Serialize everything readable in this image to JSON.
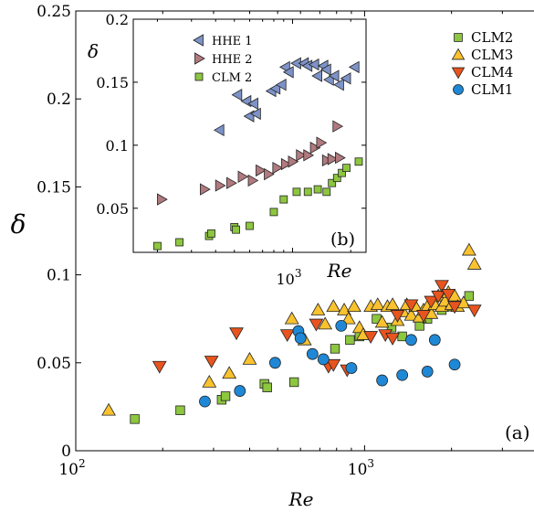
{
  "chart_data": [
    {
      "type": "scatter",
      "xlabel": "Re",
      "ylabel": "δ",
      "xscale": "log",
      "xlim": [
        100,
        4400
      ],
      "ylim": [
        0,
        0.25
      ],
      "xticks": [
        100,
        1000
      ],
      "xtick_labels": [
        "10",
        "10"
      ],
      "xtick_exponents": [
        "2",
        "3"
      ],
      "yticks": [
        0,
        0.05,
        0.1,
        0.15,
        0.2,
        0.25
      ],
      "ytick_labels": [
        "0",
        "0.05",
        "0.1",
        "0.15",
        "0.2",
        "0.25"
      ],
      "panel_label": "(a)",
      "legend_position": "top-right",
      "grid": false,
      "series": [
        {
          "name": "CLM2",
          "marker": "square",
          "color": "#8dc63f",
          "points": [
            [
              160,
              0.018
            ],
            [
              230,
              0.023
            ],
            [
              320,
              0.029
            ],
            [
              330,
              0.031
            ],
            [
              450,
              0.038
            ],
            [
              460,
              0.036
            ],
            [
              570,
              0.039
            ],
            [
              790,
              0.058
            ],
            [
              890,
              0.063
            ],
            [
              960,
              0.065
            ],
            [
              1100,
              0.075
            ],
            [
              1240,
              0.07
            ],
            [
              1350,
              0.065
            ],
            [
              1550,
              0.071
            ],
            [
              1650,
              0.075
            ],
            [
              1850,
              0.08
            ],
            [
              1980,
              0.082
            ],
            [
              2300,
              0.088
            ]
          ]
        },
        {
          "name": "CLM3",
          "marker": "triangle-up",
          "color": "#f9c22e",
          "points": [
            [
              130,
              0.023
            ],
            [
              290,
              0.039
            ],
            [
              340,
              0.044
            ],
            [
              400,
              0.052
            ],
            [
              560,
              0.075
            ],
            [
              620,
              0.063
            ],
            [
              690,
              0.08
            ],
            [
              730,
              0.072
            ],
            [
              780,
              0.082
            ],
            [
              850,
              0.08
            ],
            [
              880,
              0.075
            ],
            [
              920,
              0.082
            ],
            [
              960,
              0.07
            ],
            [
              990,
              0.066
            ],
            [
              1050,
              0.082
            ],
            [
              1110,
              0.083
            ],
            [
              1150,
              0.073
            ],
            [
              1200,
              0.082
            ],
            [
              1250,
              0.083
            ],
            [
              1300,
              0.074
            ],
            [
              1360,
              0.079
            ],
            [
              1400,
              0.083
            ],
            [
              1450,
              0.077
            ],
            [
              1500,
              0.082
            ],
            [
              1550,
              0.076
            ],
            [
              1600,
              0.08
            ],
            [
              1650,
              0.082
            ],
            [
              1700,
              0.078
            ],
            [
              1750,
              0.083
            ],
            [
              1800,
              0.088
            ],
            [
              1850,
              0.082
            ],
            [
              1900,
              0.085
            ],
            [
              1950,
              0.09
            ],
            [
              2000,
              0.083
            ],
            [
              2050,
              0.088
            ],
            [
              2100,
              0.082
            ],
            [
              2200,
              0.084
            ],
            [
              2300,
              0.114
            ],
            [
              2400,
              0.106
            ]
          ]
        },
        {
          "name": "CLM4",
          "marker": "triangle-down",
          "color": "#e8541e",
          "points": [
            [
              195,
              0.048
            ],
            [
              295,
              0.051
            ],
            [
              360,
              0.067
            ],
            [
              540,
              0.066
            ],
            [
              680,
              0.072
            ],
            [
              750,
              0.048
            ],
            [
              780,
              0.049
            ],
            [
              870,
              0.046
            ],
            [
              1050,
              0.065
            ],
            [
              1180,
              0.066
            ],
            [
              1250,
              0.064
            ],
            [
              1300,
              0.077
            ],
            [
              1450,
              0.083
            ],
            [
              1600,
              0.077
            ],
            [
              1700,
              0.085
            ],
            [
              1800,
              0.088
            ],
            [
              1850,
              0.094
            ],
            [
              1950,
              0.089
            ],
            [
              2050,
              0.082
            ],
            [
              2400,
              0.08
            ]
          ]
        },
        {
          "name": "CLM1",
          "marker": "circle",
          "color": "#1e88d6",
          "points": [
            [
              280,
              0.028
            ],
            [
              370,
              0.034
            ],
            [
              490,
              0.05
            ],
            [
              590,
              0.068
            ],
            [
              600,
              0.064
            ],
            [
              660,
              0.055
            ],
            [
              720,
              0.052
            ],
            [
              830,
              0.071
            ],
            [
              900,
              0.047
            ],
            [
              1150,
              0.04
            ],
            [
              1350,
              0.043
            ],
            [
              1450,
              0.063
            ],
            [
              1650,
              0.045
            ],
            [
              1750,
              0.063
            ],
            [
              2050,
              0.049
            ]
          ]
        }
      ]
    },
    {
      "type": "scatter",
      "inset": true,
      "xlabel": "Re",
      "ylabel": "δ",
      "xscale": "log",
      "xlim": [
        150,
        2400
      ],
      "ylim": [
        0.015,
        0.2
      ],
      "xticks": [
        1000
      ],
      "xtick_labels": [
        "10"
      ],
      "xtick_exponents": [
        "3"
      ],
      "yticks": [
        0.05,
        0.1,
        0.15,
        0.2
      ],
      "ytick_labels": [
        "0.05",
        "0.1",
        "0.15",
        "0.2"
      ],
      "panel_label": "(b)",
      "legend_position": "top-left",
      "grid": false,
      "series": [
        {
          "name": "HHE 1",
          "marker": "triangle-left",
          "color": "#7d93c8",
          "points": [
            [
              420,
              0.112
            ],
            [
              520,
              0.14
            ],
            [
              580,
              0.135
            ],
            [
              600,
              0.123
            ],
            [
              630,
              0.133
            ],
            [
              650,
              0.125
            ],
            [
              780,
              0.143
            ],
            [
              820,
              0.145
            ],
            [
              880,
              0.148
            ],
            [
              920,
              0.162
            ],
            [
              960,
              0.158
            ],
            [
              1050,
              0.165
            ],
            [
              1150,
              0.165
            ],
            [
              1200,
              0.163
            ],
            [
              1300,
              0.164
            ],
            [
              1350,
              0.155
            ],
            [
              1450,
              0.163
            ],
            [
              1500,
              0.16
            ],
            [
              1550,
              0.152
            ],
            [
              1650,
              0.155
            ],
            [
              1750,
              0.148
            ],
            [
              1900,
              0.153
            ],
            [
              2100,
              0.162
            ]
          ]
        },
        {
          "name": "HHE 2",
          "marker": "triangle-right",
          "color": "#b07a7e",
          "points": [
            [
              210,
              0.057
            ],
            [
              350,
              0.065
            ],
            [
              420,
              0.068
            ],
            [
              480,
              0.07
            ],
            [
              550,
              0.075
            ],
            [
              620,
              0.072
            ],
            [
              680,
              0.08
            ],
            [
              750,
              0.077
            ],
            [
              830,
              0.082
            ],
            [
              920,
              0.085
            ],
            [
              1000,
              0.087
            ],
            [
              1100,
              0.092
            ],
            [
              1200,
              0.092
            ],
            [
              1300,
              0.098
            ],
            [
              1400,
              0.102
            ],
            [
              1500,
              0.088
            ],
            [
              1600,
              0.089
            ],
            [
              1700,
              0.115
            ],
            [
              1750,
              0.09
            ]
          ]
        },
        {
          "name": "CLM 2",
          "marker": "square",
          "color": "#8dc63f",
          "points": [
            [
              200,
              0.02
            ],
            [
              260,
              0.023
            ],
            [
              370,
              0.028
            ],
            [
              380,
              0.03
            ],
            [
              500,
              0.035
            ],
            [
              510,
              0.033
            ],
            [
              600,
              0.036
            ],
            [
              800,
              0.047
            ],
            [
              900,
              0.057
            ],
            [
              1050,
              0.063
            ],
            [
              1200,
              0.063
            ],
            [
              1350,
              0.065
            ],
            [
              1500,
              0.063
            ],
            [
              1600,
              0.07
            ],
            [
              1700,
              0.074
            ],
            [
              1800,
              0.078
            ],
            [
              1900,
              0.082
            ],
            [
              2200,
              0.087
            ]
          ]
        }
      ]
    }
  ]
}
